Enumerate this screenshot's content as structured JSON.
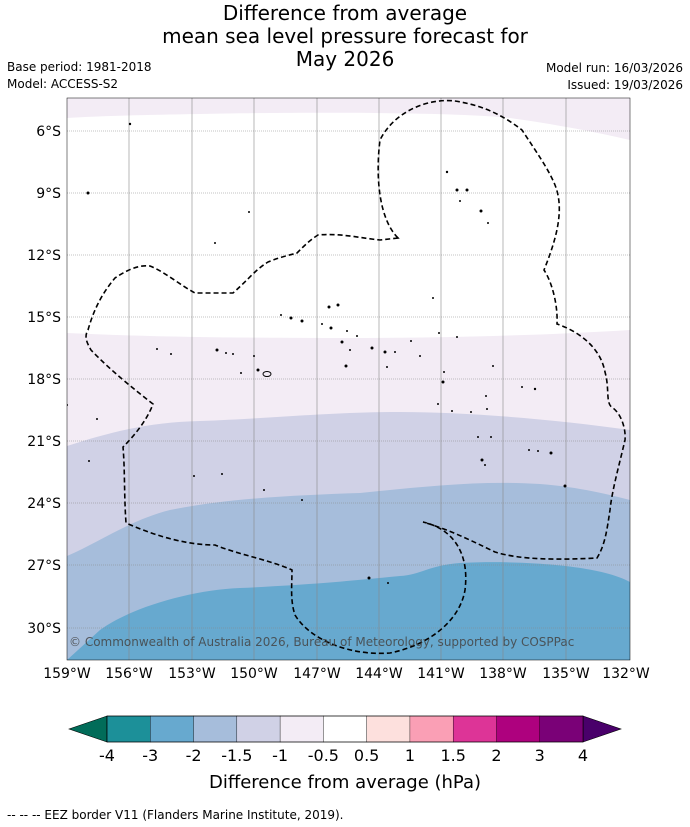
{
  "header": {
    "title_lines": [
      "Difference from average",
      "mean sea level pressure forecast for",
      "May 2026"
    ],
    "base_period": "Base period: 1981-2018",
    "model": "Model: ACCESS-S2",
    "model_run": "Model run: 16/03/2026",
    "issued": "Issued: 19/03/2026"
  },
  "map": {
    "latitudes": [
      "6°S",
      "9°S",
      "12°S",
      "15°S",
      "18°S",
      "21°S",
      "24°S",
      "27°S",
      "30°S"
    ],
    "longitudes": [
      "159°W",
      "156°W",
      "153°W",
      "150°W",
      "147°W",
      "144°W",
      "141°W",
      "138°W",
      "135°W",
      "132°W"
    ],
    "copyright": "© Commonwealth of Australia 2026, Bureau of Meteorology, supported by COSPPac",
    "colors": {
      "band_m0_5_m1": "#f3ecf5",
      "band_m1_m1_5": "#d0d1e6",
      "band_m1_5_m2": "#a6bddb",
      "band_m2_m3": "#67a9cf"
    }
  },
  "colorbar": {
    "labels": [
      "-4",
      "-3",
      "-2",
      "-1.5",
      "-1",
      "-0.5",
      "0.5",
      "1",
      "1.5",
      "2",
      "3",
      "4"
    ],
    "colors": [
      "#1c9099",
      "#67a9cf",
      "#a6bddb",
      "#d0d1e6",
      "#f3ecf5",
      "#ffffff",
      "#fde0dd",
      "#fa9fb5",
      "#dd3497",
      "#ae017e",
      "#7a0177"
    ],
    "under_color": "#016c59",
    "over_color": "#49006a",
    "title": "Difference from average (hPa)"
  },
  "footnote": "--  --  -- EEZ border V11 (Flanders Marine Institute, 2019)."
}
